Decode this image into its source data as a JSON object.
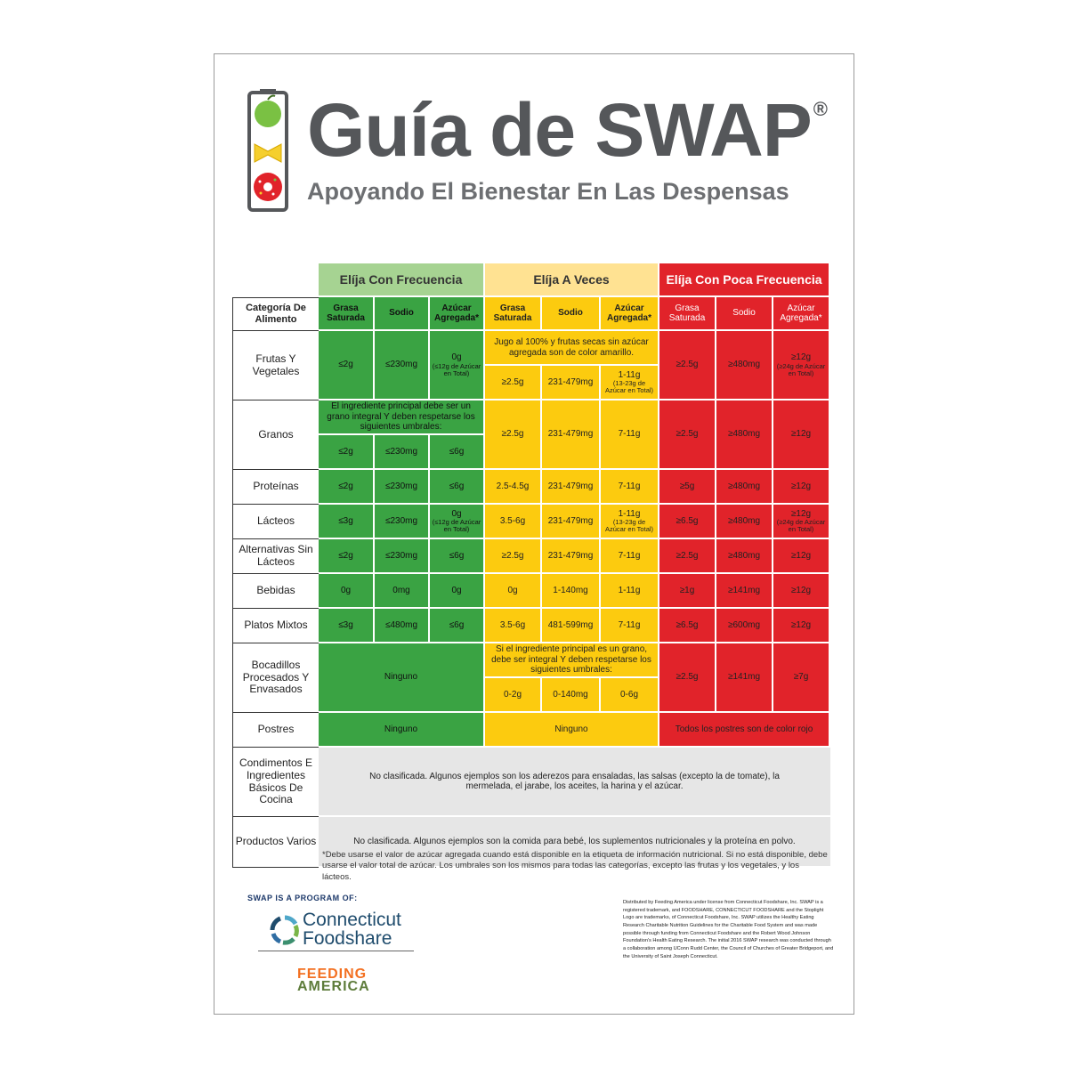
{
  "header": {
    "title": "Guía de SWAP",
    "registered": "®",
    "subtitle": "Apoyando El Bienestar En Las Despensas"
  },
  "columns": {
    "group_often": "Elíja Con Frecuencia",
    "group_sometimes": "Elíja A Veces",
    "group_rarely": "Elíja Con Poca Frecuencia",
    "category": "Categoría De Alimento",
    "fat": "Grasa Saturada",
    "sodium": "Sodio",
    "sugar": "Azúcar Agregada*"
  },
  "rows": {
    "fruits": {
      "label": "Frutas Y Vegetales",
      "g": [
        "≤2g",
        "≤230mg",
        "0g",
        "(≤12g de Azúcar en Total)"
      ],
      "y_note": "Jugo al 100% y frutas secas sin azúcar agregada son de color amarillo.",
      "y": [
        "≥2.5g",
        "231-479mg",
        "1-11g",
        "(13-23g de Azúcar en Total)"
      ],
      "r": [
        "≥2.5g",
        "≥480mg",
        "≥12g",
        "(≥24g de Azúcar en Total)"
      ]
    },
    "grains": {
      "label": "Granos",
      "g_note": "El ingrediente principal debe ser un grano integral Y deben respetarse los siguientes umbrales:",
      "g": [
        "≤2g",
        "≤230mg",
        "≤6g"
      ],
      "y": [
        "≥2.5g",
        "231-479mg",
        "7-11g"
      ],
      "r": [
        "≥2.5g",
        "≥480mg",
        "≥12g"
      ]
    },
    "proteins": {
      "label": "Proteínas",
      "g": [
        "≤2g",
        "≤230mg",
        "≤6g"
      ],
      "y": [
        "2.5-4.5g",
        "231-479mg",
        "7-11g"
      ],
      "r": [
        "≥5g",
        "≥480mg",
        "≥12g"
      ]
    },
    "dairy": {
      "label": "Lácteos",
      "g": [
        "≤3g",
        "≤230mg",
        "0g",
        "(≤12g de Azúcar en Total)"
      ],
      "y": [
        "3.5-6g",
        "231-479mg",
        "1-11g",
        "(13-23g de Azúcar en Total)"
      ],
      "r": [
        "≥6.5g",
        "≥480mg",
        "≥12g",
        "(≥24g de Azúcar en Total)"
      ]
    },
    "nondairy": {
      "label": "Alternativas Sin Lácteos",
      "g": [
        "≤2g",
        "≤230mg",
        "≤6g"
      ],
      "y": [
        "≥2.5g",
        "231-479mg",
        "7-11g"
      ],
      "r": [
        "≥2.5g",
        "≥480mg",
        "≥12g"
      ]
    },
    "drinks": {
      "label": "Bebidas",
      "g": [
        "0g",
        "0mg",
        "0g"
      ],
      "y": [
        "0g",
        "1-140mg",
        "1-11g"
      ],
      "r": [
        "≥1g",
        "≥141mg",
        "≥12g"
      ]
    },
    "mixed": {
      "label": "Platos Mixtos",
      "g": [
        "≤3g",
        "≤480mg",
        "≤6g"
      ],
      "y": [
        "3.5-6g",
        "481-599mg",
        "7-11g"
      ],
      "r": [
        "≥6.5g",
        "≥600mg",
        "≥12g"
      ]
    },
    "snacks": {
      "label": "Bocadillos Procesados Y Envasados",
      "g_text": "Ninguno",
      "y_note": "Si el ingrediente principal es un grano, debe ser integral Y deben respetarse los siguientes umbrales:",
      "y": [
        "0-2g",
        "0-140mg",
        "0-6g"
      ],
      "r": [
        "≥2.5g",
        "≥141mg",
        "≥7g"
      ]
    },
    "desserts": {
      "label": "Postres",
      "g_text": "Ninguno",
      "y_text": "Ninguno",
      "r_text": "Todos los postres son de color rojo"
    },
    "condiments": {
      "label": "Condimentos E Ingredientes Básicos De Cocina",
      "text": "No clasificada. Algunos ejemplos son los aderezos para ensaladas, las salsas (excepto la de tomate), la mermelada, el jarabe, los aceites, la harina y el azúcar."
    },
    "misc": {
      "label": "Productos Varios",
      "text": "No clasificada. Algunos ejemplos son la comida para bebé, los suplementos nutricionales y la proteína en polvo."
    }
  },
  "footnote": "*Debe usarse el valor de azúcar agregada cuando está disponible en la etiqueta de información nutricional. Si no está disponible, debe usarse el valor total de azúcar. Los umbrales son los mismos para todas las categorías, excepto las frutas y los vegetales, y los lácteos.",
  "footer": {
    "program": "SWAP IS A PROGRAM OF:",
    "cf_line1": "Connecticut",
    "cf_line2": "Foodshare",
    "fa_line1": "FEEDING",
    "fa_line2": "AMERICA",
    "legal": "Distributed by Feeding America under license from Connecticut Foodshare, Inc. SWAP is a registered trademark, and FOODSHARE, CONNECTICUT FOODSHARE and the Stoplight Logo are trademarks, of Connecticut Foodshare, Inc. SWAP utilizes the Healthy Eating Research Charitable Nutrition Guidelines for the Charitable Food System and was made possible through funding from Connecticut Foodshare and the Robert Wood Johnson Foundation's Health Eating Research. The initial 2016 SWAP research was conducted through a collaboration among UConn Rudd Center, the Council of Churches of Greater Bridgeport, and the University of Saint Joseph Connecticut."
  },
  "colors": {
    "green": "#3aa343",
    "yellow": "#fccb0f",
    "red": "#e1232a",
    "gray": "#e6e6e6"
  }
}
